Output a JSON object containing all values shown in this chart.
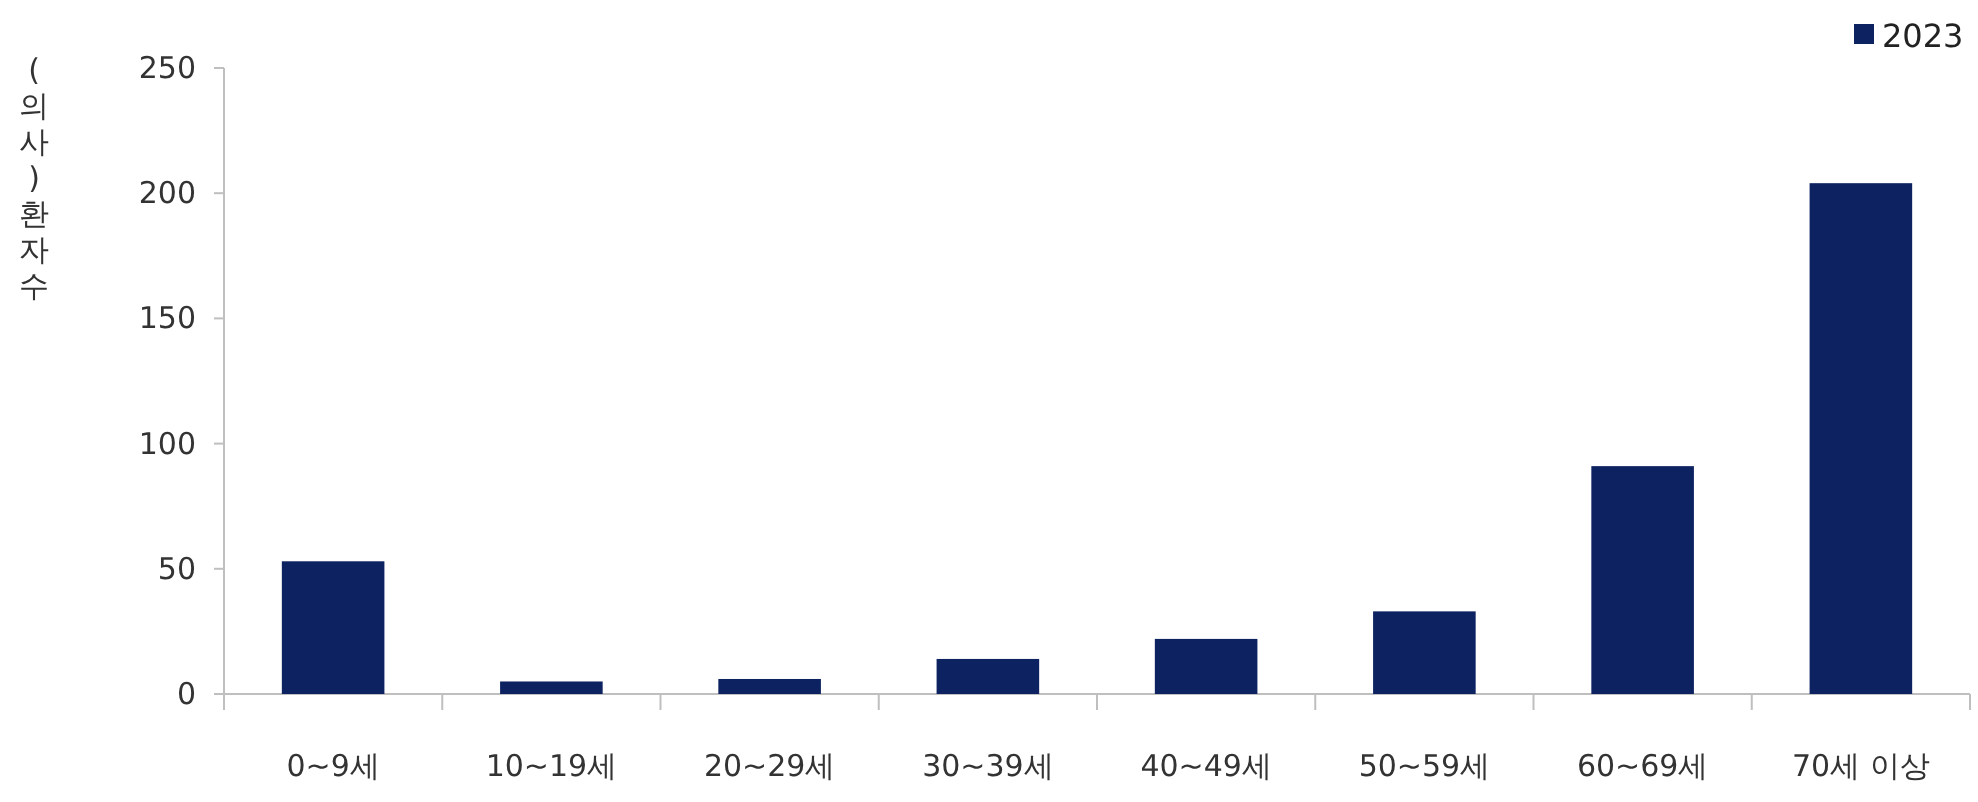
{
  "chart_data": {
    "type": "bar",
    "ylabel": "(의사)환자수",
    "categories": [
      "0~9세",
      "10~19세",
      "20~29세",
      "30~39세",
      "40~49세",
      "50~59세",
      "60~69세",
      "70세 이상"
    ],
    "series": [
      {
        "name": "2023",
        "color": "#0d2260",
        "values": [
          53,
          5,
          6,
          14,
          22,
          33,
          91,
          204
        ]
      }
    ],
    "ylim": [
      0,
      250
    ],
    "yticks": [
      0,
      50,
      100,
      150,
      200,
      250
    ],
    "grid": false,
    "legend": "top right"
  }
}
